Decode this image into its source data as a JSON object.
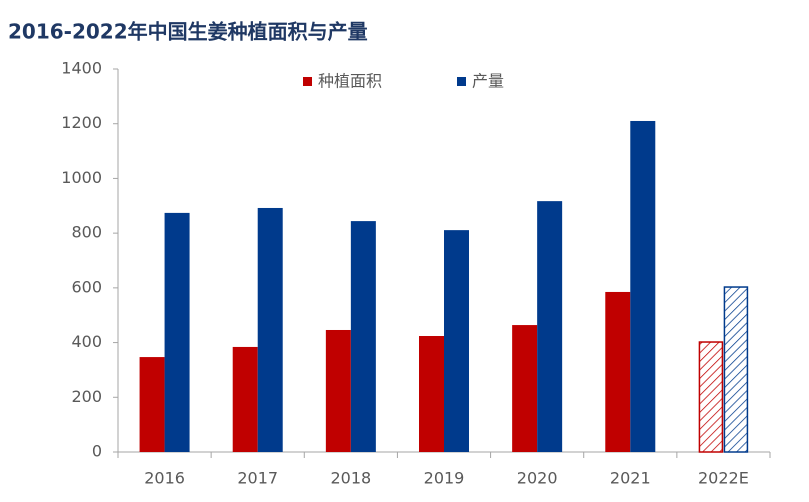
{
  "chart_data": {
    "type": "bar",
    "title": "2016-2022年中国生姜种植面积与产量",
    "categories": [
      "2016",
      "2017",
      "2018",
      "2019",
      "2020",
      "2021",
      "2022E"
    ],
    "series": [
      {
        "name": "种植面积",
        "color": "#c00000",
        "values": [
          347,
          384,
          446,
          424,
          464,
          585,
          402
        ]
      },
      {
        "name": "产量",
        "color": "#003a8c",
        "values": [
          874,
          892,
          844,
          811,
          917,
          1210,
          603
        ]
      }
    ],
    "hatched_categories": [
      6
    ],
    "ylim": [
      0,
      1400
    ],
    "yticks": [
      0,
      200,
      400,
      600,
      800,
      1000,
      1200,
      1400
    ],
    "grid": false,
    "legend": "top"
  }
}
